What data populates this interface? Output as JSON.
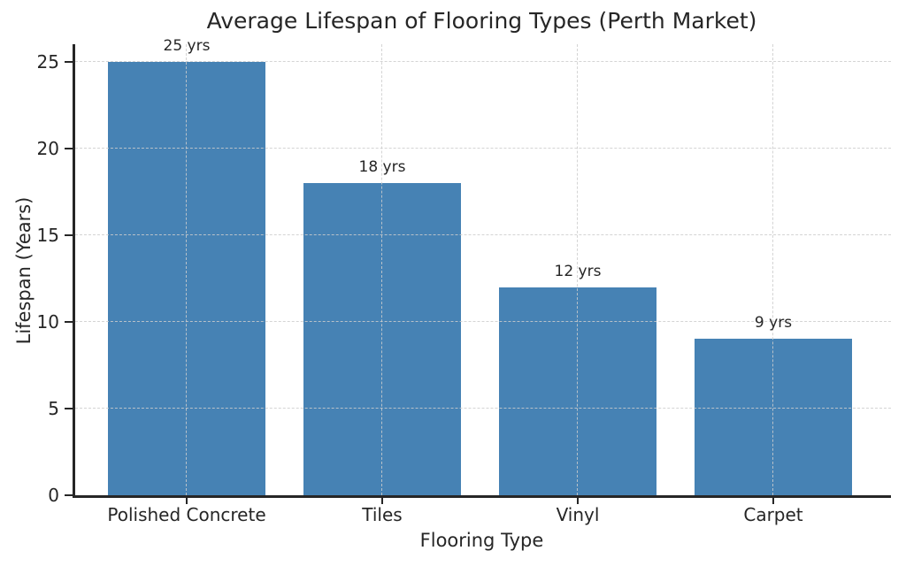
{
  "chart_data": {
    "type": "bar",
    "title": "Average Lifespan of Flooring Types (Perth Market)",
    "xlabel": "Flooring Type",
    "ylabel": "Lifespan (Years)",
    "categories": [
      "Polished Concrete",
      "Tiles",
      "Vinyl",
      "Carpet"
    ],
    "values": [
      25,
      18,
      12,
      9
    ],
    "bar_labels": [
      "25 yrs",
      "18 yrs",
      "12 yrs",
      "9 yrs"
    ],
    "yticks": [
      0,
      5,
      10,
      15,
      20,
      25
    ],
    "ylim": [
      0,
      26
    ],
    "grid": "dashed, horizontal and vertical, drawn over bars",
    "legend": "none",
    "colors": {
      "bar": "#4682b4",
      "axis_and_text": "#262626",
      "grid": "#cccccc",
      "background": "#ffffff"
    }
  }
}
